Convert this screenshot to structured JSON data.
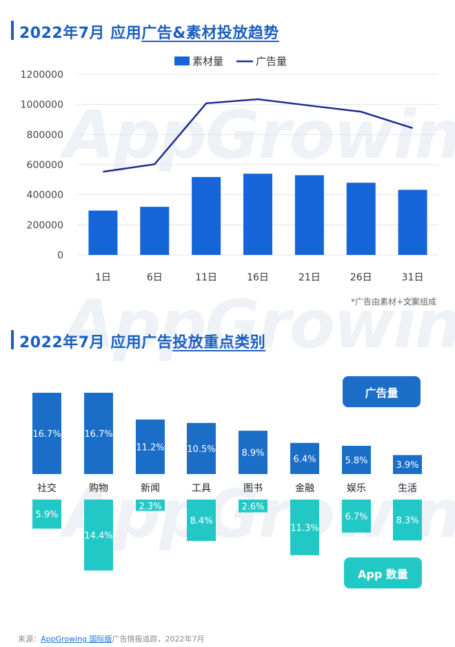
{
  "titles": {
    "chart1_prefix": "2022年7月 应用",
    "chart1_underlined": "广告&素材投放趋势",
    "chart2_prefix": "2022年7月 应用广告",
    "chart2_underlined": "投放重点类别"
  },
  "watermark": "AppGrowing",
  "chart_data": [
    {
      "type": "bar",
      "title": "2022年7月 应用广告&素材投放趋势",
      "categories": [
        "1日",
        "6日",
        "11日",
        "16日",
        "21日",
        "26日",
        "31日"
      ],
      "ylim": [
        0,
        1200000
      ],
      "yticks": [
        "0",
        "200000",
        "400000",
        "600000",
        "800000",
        "1000000",
        "1200000"
      ],
      "grid": true,
      "legend_position": "top-center",
      "series": [
        {
          "name": "素材量",
          "kind": "bar",
          "color": "#1565d8",
          "values": [
            295000,
            320000,
            518000,
            540000,
            530000,
            480000,
            433000
          ]
        },
        {
          "name": "广告量",
          "kind": "line",
          "color": "#1c2a8f",
          "values": [
            553000,
            603000,
            1008000,
            1035000,
            993000,
            952000,
            843000
          ]
        }
      ],
      "note": "*广告由素材+文案组成"
    },
    {
      "type": "bar",
      "title": "2022年7月 应用广告投放重点类别",
      "categories": [
        "社交",
        "购物",
        "新闻",
        "工具",
        "图书",
        "金融",
        "娱乐",
        "生活"
      ],
      "series": [
        {
          "name": "广告量",
          "color": "#1a6ec8",
          "values": [
            16.7,
            16.7,
            11.2,
            10.5,
            8.9,
            6.4,
            5.8,
            3.9
          ],
          "labels": [
            "16.7%",
            "16.7%",
            "11.2%",
            "10.5%",
            "8.9%",
            "6.4%",
            "5.8%",
            "3.9%"
          ]
        },
        {
          "name": "App 数量",
          "color": "#22c8c6",
          "values": [
            5.9,
            14.4,
            2.3,
            8.4,
            2.6,
            11.3,
            6.7,
            8.3
          ],
          "labels": [
            "5.9%",
            "14.4%",
            "2.3%",
            "8.4%",
            "2.6%",
            "11.3%",
            "6.7%",
            "8.3%"
          ]
        }
      ]
    }
  ],
  "footer": {
    "prefix": "来源：",
    "link": "AppGrowing 国际版",
    "suffix": "广告情报追踪，2022年7月"
  }
}
